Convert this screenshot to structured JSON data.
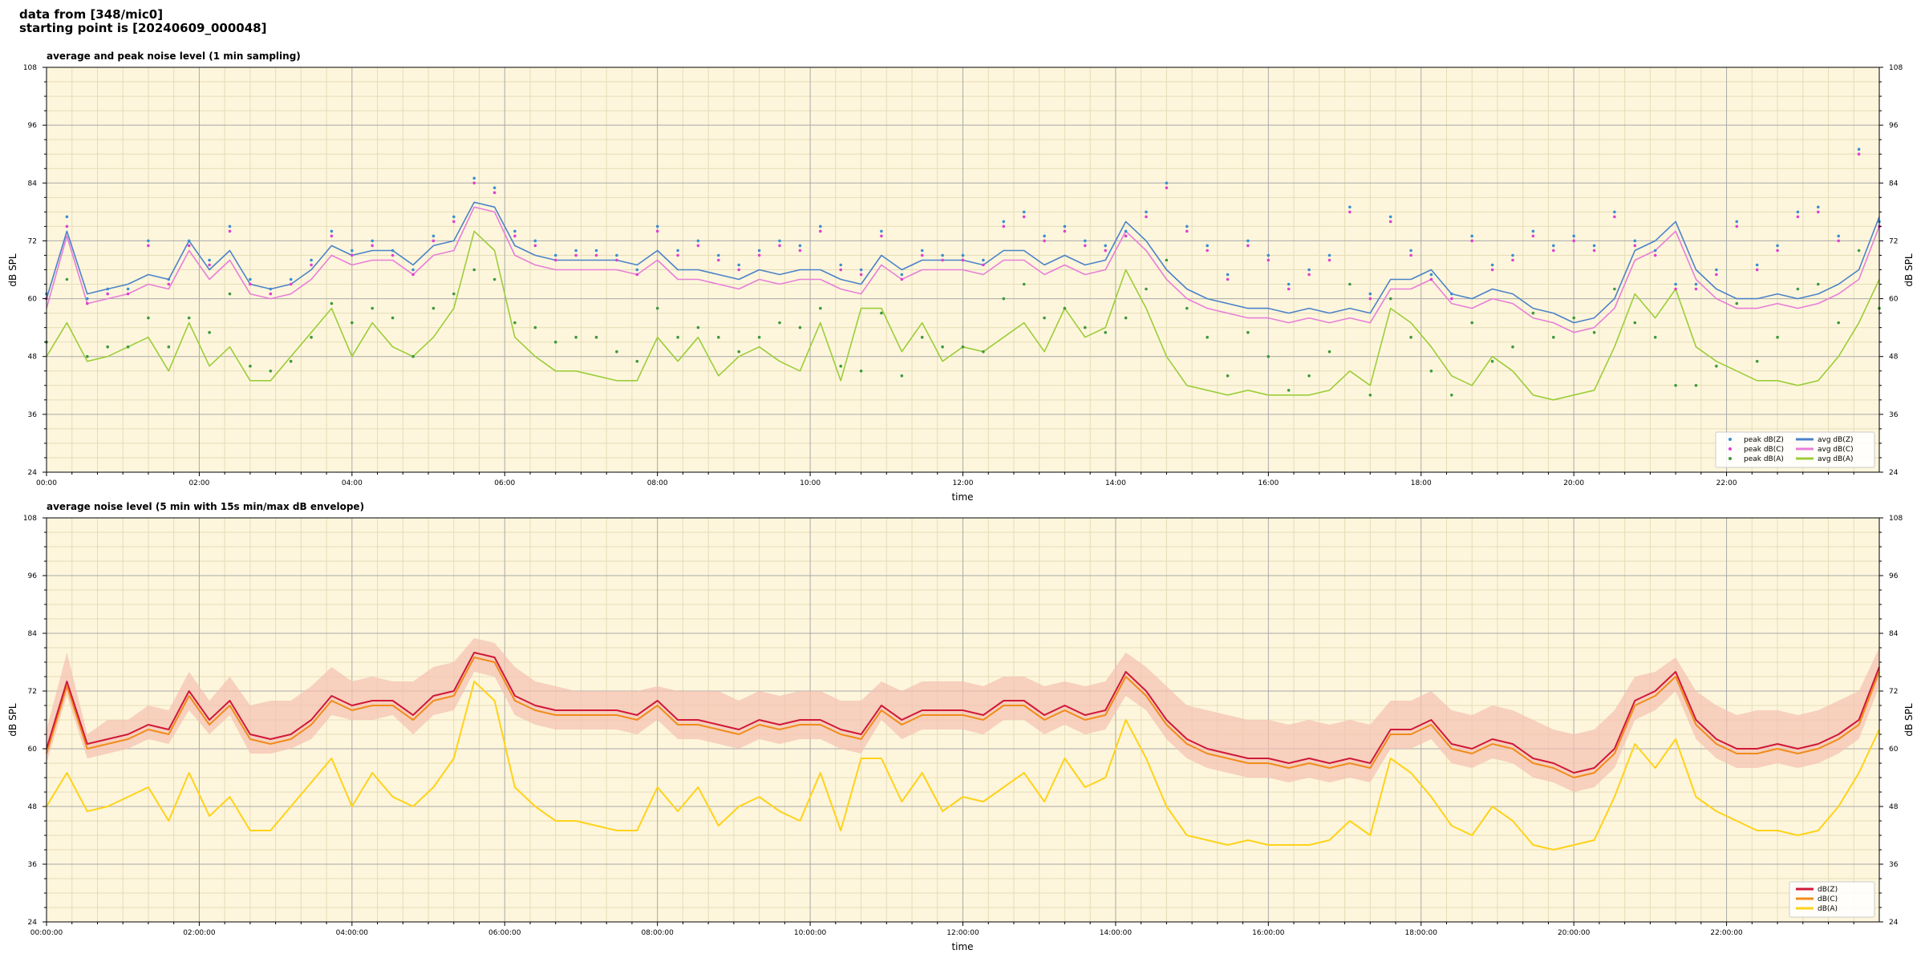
{
  "header": {
    "line1": "data from [348/mic0]",
    "line2": "starting point is [20240609_000048]"
  },
  "chart_data": [
    {
      "type": "line",
      "title": "average and peak noise level (1 min sampling)",
      "xlabel": "time",
      "ylabel": "dB SPL",
      "ylim": [
        24,
        108
      ],
      "xlim_hours": [
        0,
        24
      ],
      "yticks": [
        24,
        36,
        48,
        60,
        72,
        84,
        96,
        108
      ],
      "xtick_hours": [
        0,
        2,
        4,
        6,
        8,
        10,
        12,
        14,
        16,
        18,
        20,
        22
      ],
      "xtick_labels": [
        "00:00",
        "02:00",
        "04:00",
        "06:00",
        "08:00",
        "10:00",
        "12:00",
        "14:00",
        "16:00",
        "18:00",
        "20:00",
        "22:00"
      ],
      "grid": true,
      "legend_position": "lower-right",
      "legend_columns": 2,
      "background": "#fdf6dc",
      "series": [
        {
          "name": "peak dB(Z)",
          "kind": "dots",
          "color": "#3a8fd0",
          "values": [
            61,
            77,
            60,
            62,
            62,
            72,
            64,
            72,
            68,
            75,
            64,
            62,
            64,
            68,
            74,
            70,
            72,
            70,
            66,
            73,
            77,
            85,
            83,
            74,
            72,
            69,
            70,
            70,
            69,
            66,
            75,
            70,
            72,
            69,
            67,
            70,
            72,
            71,
            75,
            67,
            66,
            74,
            65,
            70,
            69,
            69,
            68,
            76,
            78,
            73,
            75,
            72,
            71,
            74,
            78,
            84,
            75,
            71,
            65,
            72,
            69,
            63,
            66,
            69,
            79,
            61,
            77,
            70,
            65,
            61,
            73,
            67,
            69,
            74,
            71,
            73,
            71,
            78,
            72,
            70,
            63,
            63,
            66,
            76,
            67,
            71,
            78,
            79,
            73,
            91,
            76
          ]
        },
        {
          "name": "peak dB(C)",
          "kind": "dots",
          "color": "#e040d0",
          "values": [
            60,
            75,
            59,
            61,
            61,
            71,
            63,
            71,
            67,
            74,
            63,
            61,
            63,
            67,
            73,
            69,
            71,
            69,
            65,
            72,
            76,
            84,
            82,
            73,
            71,
            68,
            69,
            69,
            68,
            65,
            74,
            69,
            71,
            68,
            66,
            69,
            71,
            70,
            74,
            66,
            65,
            73,
            64,
            69,
            68,
            68,
            67,
            75,
            77,
            72,
            74,
            71,
            70,
            73,
            77,
            83,
            74,
            70,
            64,
            71,
            68,
            62,
            65,
            68,
            78,
            60,
            76,
            69,
            64,
            60,
            72,
            66,
            68,
            73,
            70,
            72,
            70,
            77,
            71,
            69,
            62,
            62,
            65,
            75,
            66,
            70,
            77,
            78,
            72,
            90,
            75
          ]
        },
        {
          "name": "peak dB(A)",
          "kind": "dots",
          "color": "#3d9a3d",
          "values": [
            51,
            64,
            48,
            50,
            50,
            56,
            50,
            56,
            53,
            61,
            46,
            45,
            47,
            52,
            59,
            55,
            58,
            56,
            48,
            58,
            61,
            66,
            64,
            55,
            54,
            51,
            52,
            52,
            49,
            47,
            58,
            52,
            54,
            52,
            49,
            52,
            55,
            54,
            58,
            46,
            45,
            57,
            44,
            52,
            50,
            50,
            49,
            60,
            63,
            56,
            58,
            54,
            53,
            56,
            62,
            68,
            58,
            52,
            44,
            53,
            48,
            41,
            44,
            49,
            63,
            40,
            60,
            52,
            45,
            40,
            55,
            47,
            50,
            57,
            52,
            56,
            53,
            62,
            55,
            52,
            42,
            42,
            46,
            59,
            47,
            52,
            62,
            63,
            55,
            70,
            58
          ]
        },
        {
          "name": "avg dB(Z)",
          "kind": "line",
          "color": "#4b82c8",
          "values": [
            60,
            74,
            61,
            62,
            63,
            65,
            64,
            72,
            66,
            70,
            63,
            62,
            63,
            66,
            71,
            69,
            70,
            70,
            67,
            71,
            72,
            80,
            79,
            71,
            69,
            68,
            68,
            68,
            68,
            67,
            70,
            66,
            66,
            65,
            64,
            66,
            65,
            66,
            66,
            64,
            63,
            69,
            66,
            68,
            68,
            68,
            67,
            70,
            70,
            67,
            69,
            67,
            68,
            76,
            72,
            66,
            62,
            60,
            59,
            58,
            58,
            57,
            58,
            57,
            58,
            57,
            64,
            64,
            66,
            61,
            60,
            62,
            61,
            58,
            57,
            55,
            56,
            60,
            70,
            72,
            76,
            66,
            62,
            60,
            60,
            61,
            60,
            61,
            63,
            66,
            77
          ]
        },
        {
          "name": "avg dB(C)",
          "kind": "line",
          "color": "#e87ed8",
          "values": [
            58,
            73,
            59,
            60,
            61,
            63,
            62,
            70,
            64,
            68,
            61,
            60,
            61,
            64,
            69,
            67,
            68,
            68,
            65,
            69,
            70,
            79,
            78,
            69,
            67,
            66,
            66,
            66,
            66,
            65,
            68,
            64,
            64,
            63,
            62,
            64,
            63,
            64,
            64,
            62,
            61,
            67,
            64,
            66,
            66,
            66,
            65,
            68,
            68,
            65,
            67,
            65,
            66,
            74,
            70,
            64,
            60,
            58,
            57,
            56,
            56,
            55,
            56,
            55,
            56,
            55,
            62,
            62,
            64,
            59,
            58,
            60,
            59,
            56,
            55,
            53,
            54,
            58,
            68,
            70,
            74,
            64,
            60,
            58,
            58,
            59,
            58,
            59,
            61,
            64,
            75
          ]
        },
        {
          "name": "avg dB(A)",
          "kind": "line",
          "color": "#9ccd3a",
          "values": [
            48,
            55,
            47,
            48,
            50,
            52,
            45,
            55,
            46,
            50,
            43,
            43,
            48,
            53,
            58,
            48,
            55,
            50,
            48,
            52,
            58,
            74,
            70,
            52,
            48,
            45,
            45,
            44,
            43,
            43,
            52,
            47,
            52,
            44,
            48,
            50,
            47,
            45,
            55,
            43,
            58,
            58,
            49,
            55,
            47,
            50,
            49,
            52,
            55,
            49,
            58,
            52,
            54,
            66,
            58,
            48,
            42,
            41,
            40,
            41,
            40,
            40,
            40,
            41,
            45,
            42,
            58,
            55,
            50,
            44,
            42,
            48,
            45,
            40,
            39,
            40,
            41,
            50,
            61,
            56,
            62,
            50,
            47,
            45,
            43,
            43,
            42,
            43,
            48,
            55,
            64
          ]
        }
      ]
    },
    {
      "type": "line",
      "title": "average noise level (5 min with 15s min/max dB envelope)",
      "xlabel": "time",
      "ylabel": "dB SPL",
      "ylim": [
        24,
        108
      ],
      "xlim_hours": [
        0,
        24
      ],
      "yticks": [
        24,
        36,
        48,
        60,
        72,
        84,
        96,
        108
      ],
      "xtick_hours": [
        0,
        2,
        4,
        6,
        8,
        10,
        12,
        14,
        16,
        18,
        20,
        22
      ],
      "xtick_labels": [
        "00:00:00",
        "02:00:00",
        "04:00:00",
        "06:00:00",
        "08:00:00",
        "10:00:00",
        "12:00:00",
        "14:00:00",
        "16:00:00",
        "18:00:00",
        "20:00:00",
        "22:00:00"
      ],
      "grid": true,
      "legend_position": "lower-right",
      "legend_columns": 1,
      "background": "#fdf6dc",
      "envelope_color": "#f4c0b0",
      "envelope_max": [
        64,
        80,
        63,
        66,
        66,
        69,
        68,
        76,
        70,
        75,
        69,
        70,
        70,
        73,
        77,
        74,
        75,
        74,
        74,
        77,
        78,
        83,
        82,
        77,
        74,
        73,
        72,
        72,
        72,
        72,
        73,
        72,
        72,
        72,
        70,
        72,
        71,
        72,
        72,
        70,
        70,
        74,
        72,
        74,
        74,
        74,
        73,
        75,
        75,
        73,
        74,
        73,
        74,
        80,
        77,
        73,
        69,
        68,
        67,
        66,
        66,
        65,
        66,
        65,
        66,
        65,
        70,
        70,
        72,
        68,
        67,
        69,
        68,
        66,
        64,
        63,
        64,
        68,
        75,
        76,
        79,
        72,
        69,
        67,
        68,
        68,
        67,
        68,
        70,
        72,
        81
      ],
      "envelope_min": [
        57,
        71,
        58,
        59,
        60,
        62,
        61,
        68,
        63,
        67,
        59,
        59,
        60,
        62,
        67,
        66,
        66,
        67,
        63,
        67,
        68,
        76,
        75,
        67,
        65,
        64,
        64,
        64,
        64,
        63,
        66,
        62,
        62,
        61,
        60,
        62,
        61,
        62,
        62,
        60,
        59,
        66,
        62,
        64,
        64,
        64,
        63,
        66,
        66,
        63,
        65,
        63,
        64,
        71,
        68,
        62,
        58,
        56,
        55,
        54,
        54,
        53,
        54,
        53,
        54,
        53,
        60,
        60,
        62,
        57,
        56,
        58,
        57,
        54,
        53,
        51,
        52,
        56,
        66,
        68,
        72,
        62,
        58,
        56,
        56,
        57,
        56,
        57,
        59,
        62,
        73
      ],
      "series": [
        {
          "name": "dB(Z)",
          "color": "#d01838",
          "values": [
            60,
            74,
            61,
            62,
            63,
            65,
            64,
            72,
            66,
            70,
            63,
            62,
            63,
            66,
            71,
            69,
            70,
            70,
            67,
            71,
            72,
            80,
            79,
            71,
            69,
            68,
            68,
            68,
            68,
            67,
            70,
            66,
            66,
            65,
            64,
            66,
            65,
            66,
            66,
            64,
            63,
            69,
            66,
            68,
            68,
            68,
            67,
            70,
            70,
            67,
            69,
            67,
            68,
            76,
            72,
            66,
            62,
            60,
            59,
            58,
            58,
            57,
            58,
            57,
            58,
            57,
            64,
            64,
            66,
            61,
            60,
            62,
            61,
            58,
            57,
            55,
            56,
            60,
            70,
            72,
            76,
            66,
            62,
            60,
            60,
            61,
            60,
            61,
            63,
            66,
            77
          ]
        },
        {
          "name": "dB(C)",
          "color": "#f08c1a",
          "values": [
            59,
            73,
            60,
            61,
            62,
            64,
            63,
            71,
            65,
            69,
            62,
            61,
            62,
            65,
            70,
            68,
            69,
            69,
            66,
            70,
            71,
            79,
            78,
            70,
            68,
            67,
            67,
            67,
            67,
            66,
            69,
            65,
            65,
            64,
            63,
            65,
            64,
            65,
            65,
            63,
            62,
            68,
            65,
            67,
            67,
            67,
            66,
            69,
            69,
            66,
            68,
            66,
            67,
            75,
            71,
            65,
            61,
            59,
            58,
            57,
            57,
            56,
            57,
            56,
            57,
            56,
            63,
            63,
            65,
            60,
            59,
            61,
            60,
            57,
            56,
            54,
            55,
            59,
            69,
            71,
            75,
            65,
            61,
            59,
            59,
            60,
            59,
            60,
            62,
            65,
            76
          ]
        },
        {
          "name": "dB(A)",
          "color": "#ffd21a",
          "values": [
            48,
            55,
            47,
            48,
            50,
            52,
            45,
            55,
            46,
            50,
            43,
            43,
            48,
            53,
            58,
            48,
            55,
            50,
            48,
            52,
            58,
            74,
            70,
            52,
            48,
            45,
            45,
            44,
            43,
            43,
            52,
            47,
            52,
            44,
            48,
            50,
            47,
            45,
            55,
            43,
            58,
            58,
            49,
            55,
            47,
            50,
            49,
            52,
            55,
            49,
            58,
            52,
            54,
            66,
            58,
            48,
            42,
            41,
            40,
            41,
            40,
            40,
            40,
            41,
            45,
            42,
            58,
            55,
            50,
            44,
            42,
            48,
            45,
            40,
            39,
            40,
            41,
            50,
            61,
            56,
            62,
            50,
            47,
            45,
            43,
            43,
            42,
            43,
            48,
            55,
            64
          ]
        }
      ]
    }
  ]
}
